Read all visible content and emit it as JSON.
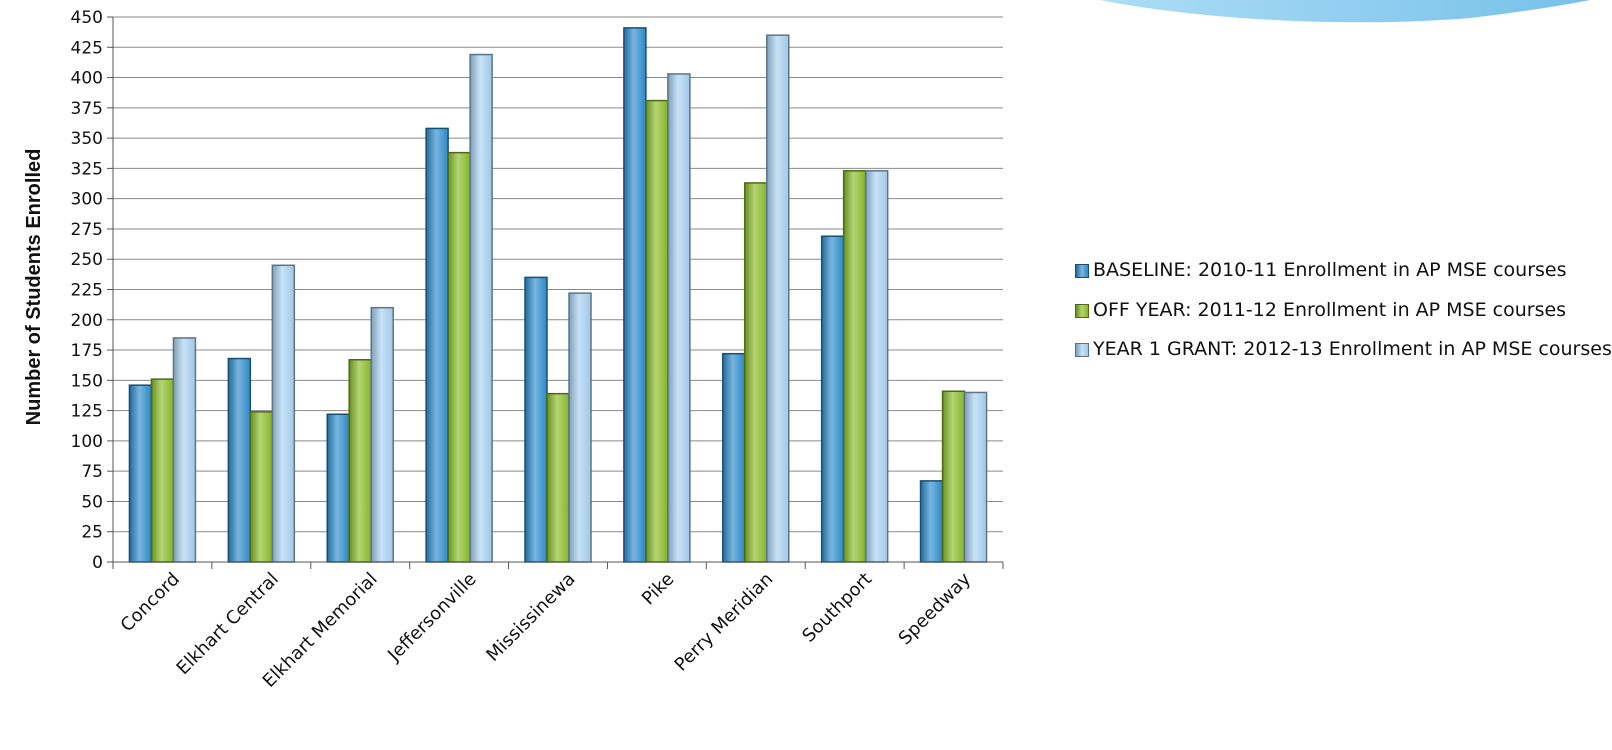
{
  "chart_data": {
    "type": "bar",
    "title": "",
    "xlabel": "",
    "ylabel": "Number of Students Enrolled",
    "ylim": [
      0,
      450
    ],
    "ytick_step": 25,
    "grid": true,
    "legend_position": "right",
    "categories": [
      "Concord",
      "Elkhart Central",
      "Elkhart Memorial",
      "Jeffersonville",
      "Mississinewa",
      "Pike",
      "Perry Meridian",
      "Southport",
      "Speedway"
    ],
    "series": [
      {
        "name": "BASELINE: 2010-11 Enrollment in AP MSE courses",
        "color": "#2f8fcf",
        "values": [
          146,
          168,
          122,
          358,
          235,
          441,
          172,
          269,
          67
        ]
      },
      {
        "name": "OFF YEAR: 2011-12 Enrollment in AP MSE courses",
        "color": "#8cbf2b",
        "values": [
          151,
          124,
          167,
          338,
          139,
          381,
          313,
          323,
          141
        ]
      },
      {
        "name": "YEAR 1 GRANT: 2012-13 Enrollment in AP MSE courses",
        "color": "#a9d3f2",
        "values": [
          185,
          245,
          210,
          419,
          222,
          403,
          435,
          323,
          140
        ]
      }
    ]
  }
}
